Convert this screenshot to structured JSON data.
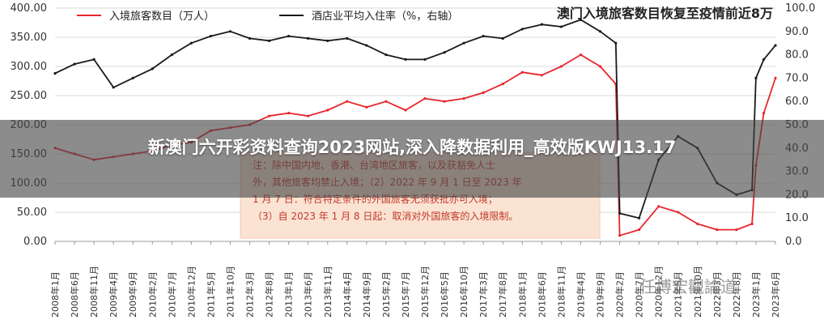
{
  "overlay": {
    "headline": "新澳门六开彩资料查询2023网站,深入降数据利用_高效版KWJ13.17",
    "watermark": "任博宏觀論道"
  },
  "chart_data": {
    "type": "line",
    "title": "澳门入境旅客数目恢复至疫情前近8万",
    "colors": {
      "visitors": "#e8262d",
      "occupancy": "#1a1a1a",
      "note_bg": "#fbe3d3",
      "note_text": "#c0392b"
    },
    "legend": [
      {
        "name": "入境旅客数目（万人）",
        "color": "#e8262d"
      },
      {
        "name": "酒店业平均入住率（%，右轴）",
        "color": "#1a1a1a"
      }
    ],
    "y_left": {
      "lim": [
        0,
        400
      ],
      "ticks": [
        "0.00",
        "50.00",
        "100.00",
        "150.00",
        "200.00",
        "250.00",
        "300.00",
        "350.00",
        "400.00"
      ]
    },
    "y_right": {
      "lim": [
        0,
        100
      ],
      "ticks": [
        "0.0",
        "10.0",
        "20.0",
        "30.0",
        "40.0",
        "50.0",
        "60.0",
        "70.0",
        "80.0",
        "90.0",
        "100.0"
      ]
    },
    "x_tick_labels": [
      "2008年1月",
      "2008年6月",
      "2008年11月",
      "2009年4月",
      "2009年9月",
      "2010年2月",
      "2010年7月",
      "2010年12月",
      "2011年5月",
      "2011年10月",
      "2012年3月",
      "2012年8月",
      "2013年1月",
      "2013年6月",
      "2013年11月",
      "2014年4月",
      "2014年9月",
      "2015年2月",
      "2015年7月",
      "2015年12月",
      "2016年5月",
      "2016年10月",
      "2017年3月",
      "2017年8月",
      "2018年1月",
      "2018年6月",
      "2018年11月",
      "2019年4月",
      "2019年9月",
      "2020年2月",
      "2020年7月",
      "2020年12月",
      "2021年5月",
      "2021年10月",
      "2022年3月",
      "2022年8月",
      "2023年1月",
      "2023年6月"
    ],
    "series": [
      {
        "name": "入境旅客数目（万人）",
        "axis": "left",
        "x": [
          "2008年1月",
          "2008年6月",
          "2008年11月",
          "2009年4月",
          "2009年9月",
          "2010年2月",
          "2010年7月",
          "2010年12月",
          "2011年5月",
          "2011年10月",
          "2012年3月",
          "2012年8月",
          "2013年1月",
          "2013年6月",
          "2013年11月",
          "2014年4月",
          "2014年9月",
          "2015年2月",
          "2015年7月",
          "2015年12月",
          "2016年5月",
          "2016年10月",
          "2017年3月",
          "2017年8月",
          "2018年1月",
          "2018年6月",
          "2018年11月",
          "2019年4月",
          "2019年9月",
          "2020年1月",
          "2020年2月",
          "2020年7月",
          "2020年12月",
          "2021年5月",
          "2021年10月",
          "2022年3月",
          "2022年8月",
          "2022年12月",
          "2023年1月",
          "2023年3月",
          "2023年6月"
        ],
        "values": [
          160,
          150,
          140,
          145,
          150,
          155,
          165,
          170,
          190,
          195,
          200,
          215,
          220,
          215,
          225,
          240,
          230,
          240,
          225,
          245,
          240,
          245,
          255,
          270,
          290,
          285,
          300,
          320,
          300,
          270,
          10,
          20,
          60,
          50,
          30,
          20,
          20,
          30,
          130,
          220,
          280
        ]
      },
      {
        "name": "酒店业平均入住率（%，右轴）",
        "axis": "right",
        "x": [
          "2008年1月",
          "2008年6月",
          "2008年11月",
          "2009年4月",
          "2009年9月",
          "2010年2月",
          "2010年7月",
          "2010年12月",
          "2011年5月",
          "2011年10月",
          "2012年3月",
          "2012年8月",
          "2013年1月",
          "2013年6月",
          "2013年11月",
          "2014年4月",
          "2014年9月",
          "2015年2月",
          "2015年7月",
          "2015年12月",
          "2016年5月",
          "2016年10月",
          "2017年3月",
          "2017年8月",
          "2018年1月",
          "2018年6月",
          "2018年11月",
          "2019年4月",
          "2019年9月",
          "2020年1月",
          "2020年2月",
          "2020年7月",
          "2020年12月",
          "2021年5月",
          "2021年10月",
          "2022年3月",
          "2022年8月",
          "2022年12月",
          "2023年1月",
          "2023年3月",
          "2023年6月"
        ],
        "values": [
          72,
          76,
          78,
          66,
          70,
          74,
          80,
          85,
          88,
          90,
          87,
          86,
          88,
          87,
          86,
          87,
          84,
          80,
          78,
          78,
          81,
          85,
          88,
          87,
          91,
          93,
          92,
          95,
          90,
          85,
          12,
          10,
          35,
          45,
          40,
          25,
          20,
          22,
          70,
          78,
          84
        ]
      }
    ],
    "notes": [
      "注：除中国内地、香港、台湾地区旅客，以及获豁免人士",
      "外，其他旅客均禁止入境；（2）2022 年 9 月 1 日至 2023 年",
      "1 月 7 日：符合特定条件的外国旅客无须获批亦可入境；",
      "（3）自 2023 年 1 月 8 日起：取消对外国旅客的入境限制。"
    ],
    "grid": "horizontal",
    "legend_position": "top-left"
  }
}
